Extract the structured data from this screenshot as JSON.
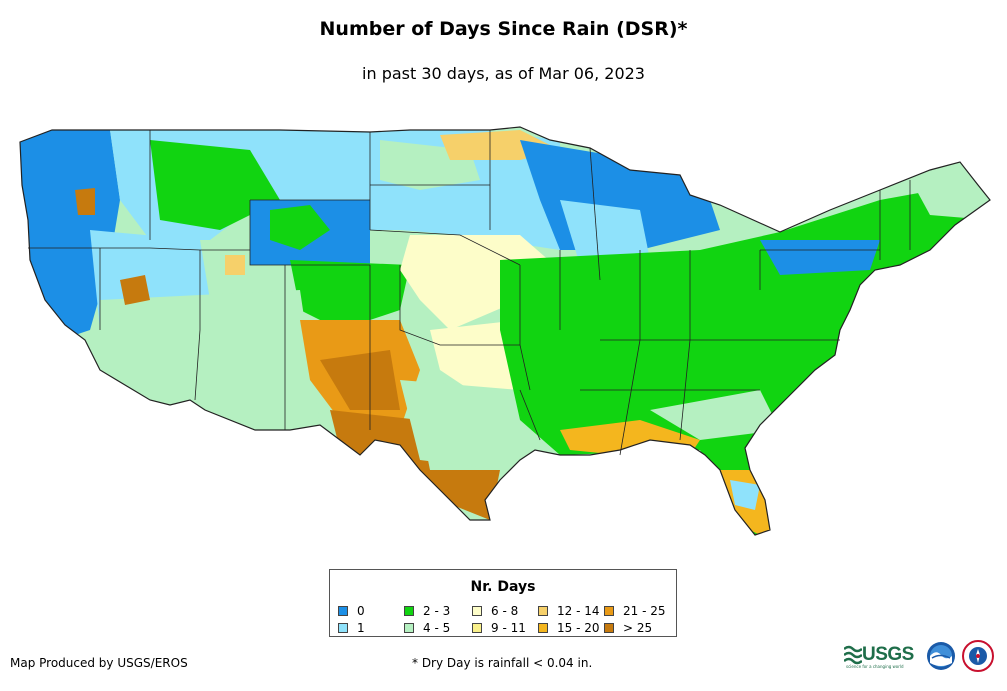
{
  "title": "Number of Days Since Rain (DSR)*",
  "subtitle": "in past 30 days, as of Mar 06, 2023",
  "legend": {
    "title": "Nr. Days",
    "items": [
      {
        "label": "0",
        "color": "#1c8fe6"
      },
      {
        "label": "1",
        "color": "#8fe2fb"
      },
      {
        "label": "2 - 3",
        "color": "#11d411"
      },
      {
        "label": "4 - 5",
        "color": "#b5f0c1"
      },
      {
        "label": "6 - 8",
        "color": "#fdfdc9"
      },
      {
        "label": "9 - 11",
        "color": "#f9f08a"
      },
      {
        "label": "12 - 14",
        "color": "#f6d06a"
      },
      {
        "label": "15 - 20",
        "color": "#f4b61e"
      },
      {
        "label": "21 - 25",
        "color": "#e99a16"
      },
      {
        "label": "> 25",
        "color": "#c67a0e"
      }
    ]
  },
  "credit": "Map Produced by USGS/EROS",
  "footnote": "* Dry Day is rainfall < 0.04 in.",
  "logos": {
    "usgs": "USGS",
    "usgs_tagline": "science for a changing world",
    "noaa": "noaa-logo",
    "nws": "nws-logo"
  }
}
